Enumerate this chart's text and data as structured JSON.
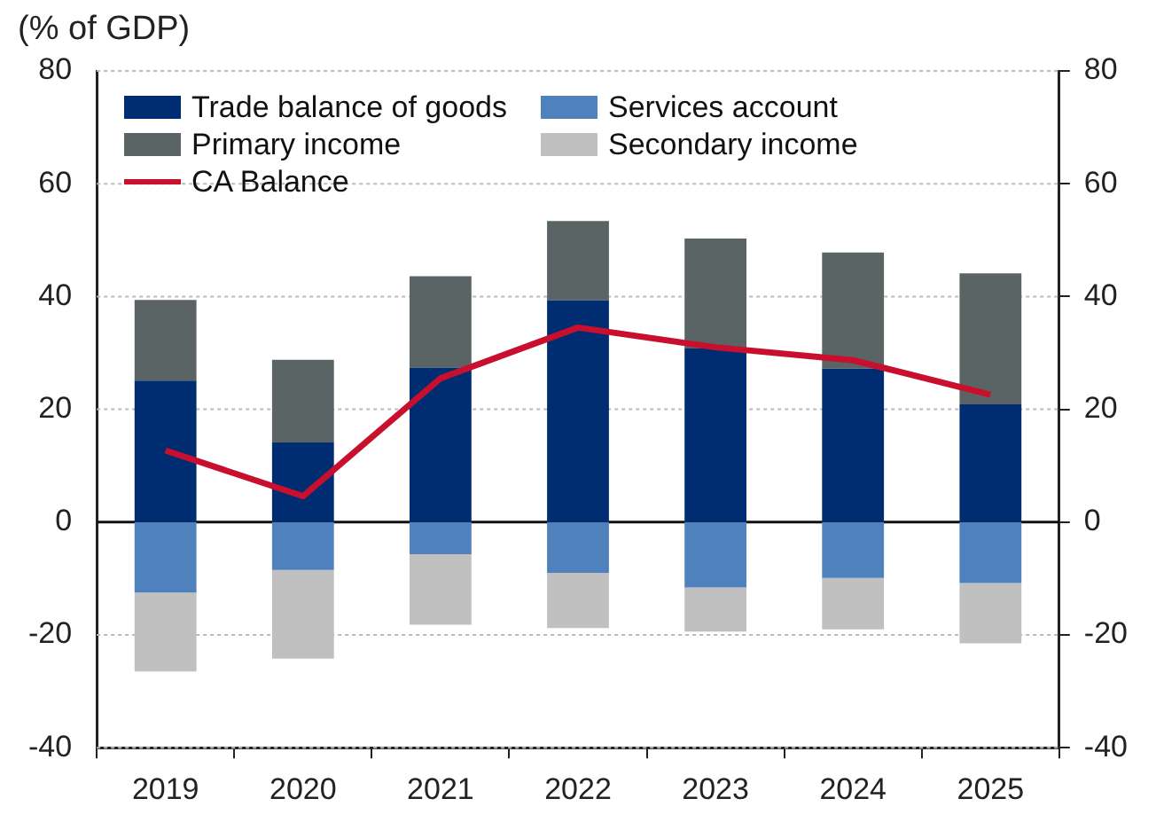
{
  "chart_data": {
    "type": "bar",
    "stacked": true,
    "subtitle": "(% of GDP)",
    "categories": [
      "2019",
      "2020",
      "2021",
      "2022",
      "2023",
      "2024",
      "2025"
    ],
    "series": [
      {
        "name": "Trade balance of goods",
        "color": "#002d72",
        "values": [
          25.1,
          14.1,
          27.4,
          39.3,
          30.8,
          27.2,
          20.9
        ]
      },
      {
        "name": "Services account",
        "color": "#4f81bd",
        "values": [
          -12.5,
          -8.5,
          -5.7,
          -9,
          -11.6,
          -9.9,
          -10.8
        ]
      },
      {
        "name": "Primary income",
        "color": "#5a6464",
        "values": [
          14.3,
          14.7,
          16.2,
          14.1,
          19.5,
          20.6,
          23.2
        ]
      },
      {
        "name": "Secondary income",
        "color": "#c0c0c0",
        "values": [
          -14,
          -15.7,
          -12.5,
          -9.8,
          -7.8,
          -9.1,
          -10.7
        ]
      },
      {
        "name": "CA Balance",
        "type": "line",
        "color": "#c8102e",
        "marker": "none",
        "values": [
          12.7,
          4.6,
          25.5,
          34.5,
          31,
          28.7,
          22.6
        ]
      }
    ],
    "ylim": [
      -40,
      80
    ],
    "yticks": [
      -40,
      -20,
      0,
      20,
      40,
      60,
      80
    ],
    "y2lim": [
      -40,
      80
    ],
    "y2ticks": [
      -40,
      -20,
      0,
      20,
      40,
      60,
      80
    ],
    "grid": "y",
    "legend": "top left"
  }
}
